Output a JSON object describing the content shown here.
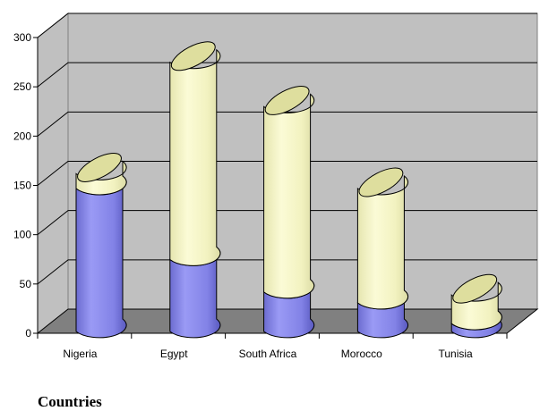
{
  "chart_data": {
    "type": "bar",
    "stacked": true,
    "three_d": true,
    "bar_shape": "cylinder",
    "categories": [
      "Nigeria",
      "Egypt",
      "South Africa",
      "Morocco",
      "Tunisia"
    ],
    "series": [
      {
        "values": [
          145,
          73,
          40,
          29,
          8
        ],
        "color": "#8f8fef"
      },
      {
        "values": [
          15,
          200,
          188,
          116,
          29
        ],
        "color": "#f6f6c4"
      }
    ],
    "y_ticks": [
      0,
      50,
      100,
      150,
      200,
      250,
      300
    ],
    "ylim": [
      0,
      300
    ],
    "xlabel": "Countries",
    "ylabel": "",
    "grid": true,
    "legend": "none"
  }
}
